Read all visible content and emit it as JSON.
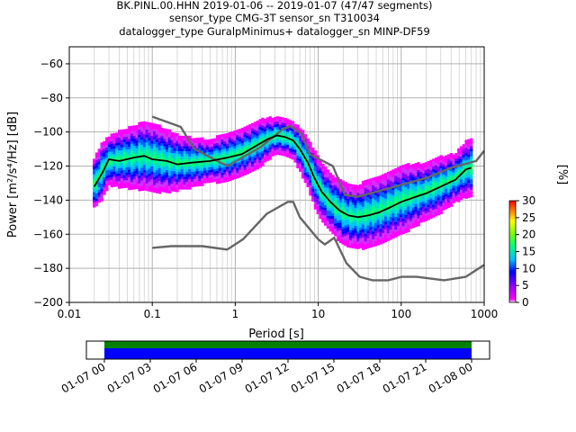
{
  "header": {
    "title_line1": "BK.PINL.00.HHN   2019-01-06 -- 2019-01-07  (47/47 segments)",
    "title_line2": "sensor_type CMG-3T sensor_sn T310034",
    "title_line3": "datalogger_type GuralpMinimus+ datalogger_sn MINP-DF59"
  },
  "colors": {
    "noise_model": "#666666",
    "mode_line": "#000000",
    "colormap": [
      "#ffffff",
      "#ff00ff",
      "#a000ff",
      "#0000ff",
      "#00c0ff",
      "#00ff80",
      "#80ff00",
      "#ffff00",
      "#ff8000",
      "#ff0000"
    ]
  },
  "chart_data": [
    {
      "type": "heatmap",
      "title": "",
      "xlabel": "Period [s]",
      "ylabel": "Power [m²/s⁴/Hz] [dB]",
      "xscale": "log",
      "xlim": [
        0.01,
        1000
      ],
      "ylim": [
        -200,
        -50
      ],
      "x_ticks": [
        0.01,
        0.1,
        1,
        10,
        100,
        1000
      ],
      "x_tick_labels": [
        "0.01",
        "0.1",
        "1",
        "10",
        "100",
        "1000"
      ],
      "y_ticks": [
        -200,
        -180,
        -160,
        -140,
        -120,
        -100,
        -80,
        -60
      ],
      "y_tick_labels": [
        "−200",
        "−180",
        "−160",
        "−140",
        "−120",
        "−100",
        "−80",
        "−60"
      ],
      "grid": true,
      "colorbar": {
        "label": "[%]",
        "ticks": [
          0,
          5,
          10,
          15,
          20,
          25,
          30
        ],
        "tick_labels": [
          "0",
          "5",
          "10",
          "15",
          "20",
          "25",
          "30"
        ],
        "range": [
          0,
          30
        ]
      },
      "series": [
        {
          "name": "",
          "role": "high-noise-model",
          "points": [
            [
              0.1,
              -91
            ],
            [
              0.22,
              -97
            ],
            [
              0.32,
              -110
            ],
            [
              0.8,
              -120
            ],
            [
              2,
              -109
            ],
            [
              3.8,
              -98
            ],
            [
              4.6,
              -96.5
            ],
            [
              6.3,
              -101
            ],
            [
              7.9,
              -113
            ],
            [
              15,
              -120
            ],
            [
              21,
              -137
            ],
            [
              30,
              -138
            ],
            [
              100,
              -131
            ],
            [
              200,
              -127
            ],
            [
              400,
              -121
            ],
            [
              800,
              -117
            ],
            [
              1000,
              -111
            ]
          ]
        },
        {
          "name": "",
          "role": "low-noise-model",
          "points": [
            [
              0.1,
              -168
            ],
            [
              0.17,
              -167
            ],
            [
              0.4,
              -167
            ],
            [
              0.8,
              -169
            ],
            [
              1.24,
              -163
            ],
            [
              2.4,
              -148
            ],
            [
              4.3,
              -141
            ],
            [
              5,
              -141
            ],
            [
              6,
              -150
            ],
            [
              10,
              -163
            ],
            [
              12,
              -166
            ],
            [
              15.6,
              -162
            ],
            [
              21.9,
              -177
            ],
            [
              31.6,
              -185
            ],
            [
              45,
              -187
            ],
            [
              70,
              -187
            ],
            [
              101,
              -185
            ],
            [
              154,
              -185
            ],
            [
              328,
              -187
            ],
            [
              600,
              -185
            ],
            [
              1000,
              -178
            ]
          ]
        },
        {
          "name": "",
          "role": "mode",
          "points": [
            [
              0.02,
              -132
            ],
            [
              0.025,
              -124
            ],
            [
              0.03,
              -116
            ],
            [
              0.04,
              -117
            ],
            [
              0.06,
              -115
            ],
            [
              0.08,
              -114
            ],
            [
              0.1,
              -116
            ],
            [
              0.15,
              -117
            ],
            [
              0.2,
              -119
            ],
            [
              0.3,
              -118
            ],
            [
              0.5,
              -117
            ],
            [
              0.8,
              -115
            ],
            [
              1.2,
              -113
            ],
            [
              1.8,
              -108
            ],
            [
              2.5,
              -104
            ],
            [
              3.2,
              -102
            ],
            [
              4,
              -103
            ],
            [
              5,
              -105
            ],
            [
              6,
              -110
            ],
            [
              7.5,
              -118
            ],
            [
              9,
              -127
            ],
            [
              11,
              -135
            ],
            [
              14,
              -141
            ],
            [
              18,
              -146
            ],
            [
              23,
              -149
            ],
            [
              30,
              -150
            ],
            [
              40,
              -149
            ],
            [
              55,
              -147
            ],
            [
              75,
              -144
            ],
            [
              100,
              -141
            ],
            [
              150,
              -138
            ],
            [
              200,
              -136
            ],
            [
              300,
              -132
            ],
            [
              450,
              -128
            ],
            [
              600,
              -122
            ],
            [
              700,
              -121
            ]
          ]
        }
      ],
      "heat_band": [
        [
          0.02,
          -130,
          14
        ],
        [
          0.025,
          -123,
          16
        ],
        [
          0.03,
          -117,
          14
        ],
        [
          0.04,
          -116,
          16
        ],
        [
          0.06,
          -115,
          18
        ],
        [
          0.08,
          -114,
          20
        ],
        [
          0.1,
          -115,
          20
        ],
        [
          0.15,
          -117,
          18
        ],
        [
          0.2,
          -118,
          16
        ],
        [
          0.3,
          -118,
          14
        ],
        [
          0.5,
          -117,
          12
        ],
        [
          0.8,
          -115,
          14
        ],
        [
          1.2,
          -112,
          14
        ],
        [
          1.8,
          -108,
          14
        ],
        [
          2.5,
          -104,
          12
        ],
        [
          3.2,
          -102,
          10
        ],
        [
          4,
          -103,
          10
        ],
        [
          5,
          -105,
          10
        ],
        [
          6,
          -110,
          12
        ],
        [
          7.5,
          -118,
          14
        ],
        [
          9,
          -127,
          16
        ],
        [
          11,
          -135,
          16
        ],
        [
          14,
          -141,
          16
        ],
        [
          18,
          -146,
          18
        ],
        [
          23,
          -149,
          18
        ],
        [
          30,
          -150,
          18
        ],
        [
          40,
          -148,
          20
        ],
        [
          55,
          -146,
          20
        ],
        [
          75,
          -143,
          20
        ],
        [
          100,
          -140,
          20
        ],
        [
          150,
          -137,
          18
        ],
        [
          200,
          -135,
          16
        ],
        [
          300,
          -131,
          16
        ],
        [
          450,
          -127,
          14
        ],
        [
          600,
          -122,
          16
        ],
        [
          700,
          -121,
          16
        ]
      ]
    },
    {
      "type": "bar",
      "title": "",
      "xlabel": "",
      "ylabel": "",
      "x_tick_labels": [
        "01-07 00",
        "01-07 03",
        "01-07 06",
        "01-07 09",
        "01-07 12",
        "01-07 15",
        "01-07 18",
        "01-07 21",
        "01-08 00"
      ],
      "xlim": [
        "01-06 22:50",
        "01-08 01:20"
      ],
      "series": [
        {
          "name": "",
          "start": "01-07 00",
          "end": "01-08 00",
          "color": "#008000"
        },
        {
          "name": "",
          "start": "01-07 00",
          "end": "01-08 00",
          "color": "#0000ff"
        }
      ]
    }
  ]
}
